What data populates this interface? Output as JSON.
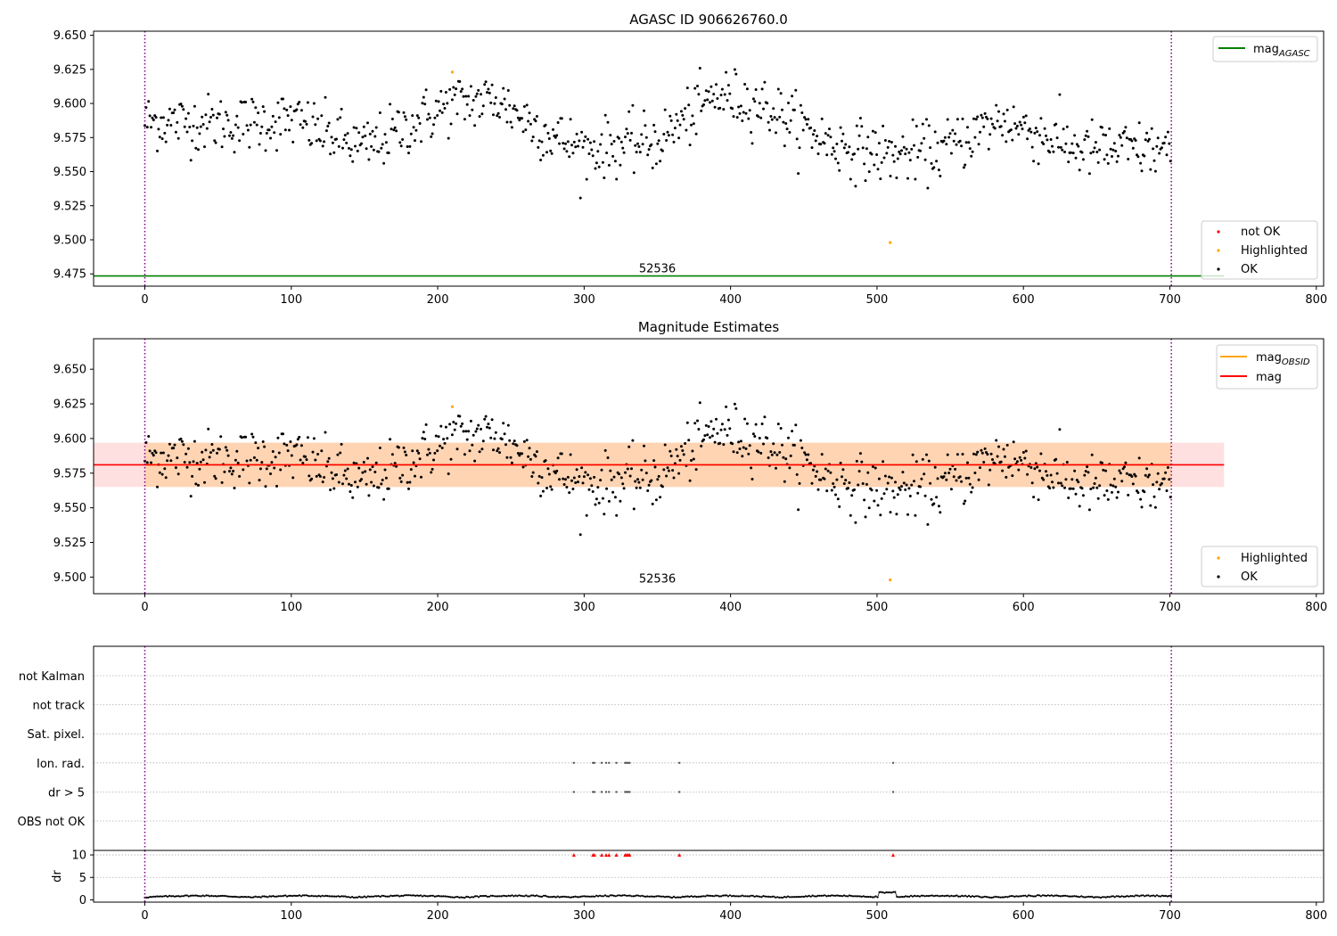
{
  "chart_data": [
    {
      "type": "scatter",
      "title": "AGASC ID 906626760.0",
      "xlim": [
        -35,
        805
      ],
      "ylim": [
        9.466,
        9.653
      ],
      "xticks": [
        0,
        100,
        200,
        300,
        400,
        500,
        600,
        700,
        800
      ],
      "yticks": [
        9.475,
        9.5,
        9.525,
        9.55,
        9.575,
        9.6,
        9.625,
        9.65
      ],
      "grid": false,
      "vlines": [
        0,
        701
      ],
      "hline": {
        "name": "mag_AGASC",
        "value": 9.4735,
        "x_range": [
          -35,
          737
        ],
        "color": "#008000"
      },
      "obsid_label": {
        "text": "52536",
        "x": 350,
        "y": 9.4762
      },
      "series": [
        {
          "name": "not OK",
          "color": "#ff0000",
          "values": []
        },
        {
          "name": "Highlighted",
          "color": "#ffa500",
          "values": [
            [
              210,
              9.623
            ],
            [
              509,
              9.498
            ]
          ]
        },
        {
          "name": "OK",
          "color": "#000000",
          "values_note": "",
          "generated": true
        }
      ],
      "legend_upper": "top-right",
      "legend_lower": "bottom-right"
    },
    {
      "type": "scatter",
      "title": "Magnitude Estimates",
      "xlim": [
        -35,
        805
      ],
      "ylim": [
        9.488,
        9.672
      ],
      "xticks": [
        0,
        100,
        200,
        300,
        400,
        500,
        600,
        700,
        800
      ],
      "yticks": [
        9.5,
        9.525,
        9.55,
        9.575,
        9.6,
        9.625,
        9.65
      ],
      "grid": false,
      "vlines": [
        0,
        701
      ],
      "mag_line": {
        "name": "mag",
        "value": 9.581,
        "x_range": [
          -35,
          737
        ],
        "color": "#ff0000"
      },
      "mag_band": {
        "low": 9.565,
        "high": 9.597,
        "x_range": [
          -35,
          737
        ]
      },
      "obsid_band": {
        "low": 9.565,
        "high": 9.597,
        "x_range": [
          0,
          701
        ]
      },
      "obsid_label": {
        "text": "52536",
        "x": 350,
        "y": 9.4962
      },
      "series": [
        {
          "name": "Highlighted",
          "color": "#ffa500",
          "values": [
            [
              210,
              9.623
            ],
            [
              509,
              9.498
            ]
          ]
        },
        {
          "name": "OK",
          "color": "#000000",
          "generated": true
        }
      ],
      "legend_upper": [
        {
          "name": "mag_OBSID",
          "color": "#ffa500"
        },
        {
          "name": "mag",
          "color": "#ff0000"
        }
      ],
      "legend_lower": "bottom-right"
    },
    {
      "type": "scatter",
      "title": "",
      "xlim": [
        -35,
        805
      ],
      "xticks": [
        0,
        100,
        200,
        300,
        400,
        500,
        600,
        700,
        800
      ],
      "vlines": [
        0,
        701
      ],
      "categories": [
        "not Kalman",
        "not track",
        "Sat. pixel.",
        "Ion. rad.",
        "dr > 5",
        "OBS not OK"
      ],
      "flag_x": [
        293,
        306,
        307,
        312,
        315,
        317,
        322,
        328,
        329,
        330,
        331,
        365,
        511
      ],
      "flag_rows": [
        "Ion. rad.",
        "dr > 5"
      ]
    },
    {
      "type": "line",
      "ylabel": "dr",
      "xlim": [
        -35,
        805
      ],
      "ylim": [
        -0.5,
        11
      ],
      "yticks": [
        0,
        5,
        10
      ],
      "xticks": [
        0,
        100,
        200,
        300,
        400,
        500,
        600,
        700,
        800
      ],
      "vlines": [
        0,
        701
      ],
      "above_markers_x": [
        293,
        306,
        307,
        312,
        315,
        317,
        322,
        328,
        329,
        330,
        331,
        365,
        511
      ],
      "above_marker_value": 10
    }
  ],
  "legend_labels": {
    "mag_agasc_main": "mag",
    "mag_agasc_sub": "AGASC",
    "mag_obsid_main": "mag",
    "mag_obsid_sub": "OBSID",
    "mag": "mag",
    "not_ok": "not OK",
    "highlighted": "Highlighted",
    "ok": "OK"
  }
}
